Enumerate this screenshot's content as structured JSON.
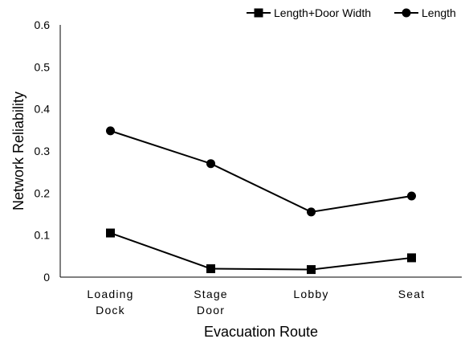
{
  "chart_data": {
    "type": "line",
    "title": "",
    "xlabel": "Evacuation Route",
    "ylabel": "Network Reliability",
    "categories": [
      [
        "Loading",
        "Dock"
      ],
      [
        "Stage",
        "Door"
      ],
      [
        "Lobby"
      ],
      [
        "Seat"
      ]
    ],
    "ylim": [
      0,
      0.6
    ],
    "yticks": [
      0,
      0.1,
      0.2,
      0.3,
      0.4,
      0.5,
      0.6
    ],
    "ytick_labels": [
      "0",
      "0.1",
      "0.2",
      "0.3",
      "0.4",
      "0.5",
      "0.6"
    ],
    "grid": false,
    "legend_position": "top-right",
    "series": [
      {
        "name": "Length+Door Width",
        "marker": "square",
        "color": "#000000",
        "values": [
          0.105,
          0.02,
          0.018,
          0.046
        ]
      },
      {
        "name": "Length",
        "marker": "circle",
        "color": "#000000",
        "values": [
          0.348,
          0.27,
          0.155,
          0.193
        ]
      }
    ]
  }
}
